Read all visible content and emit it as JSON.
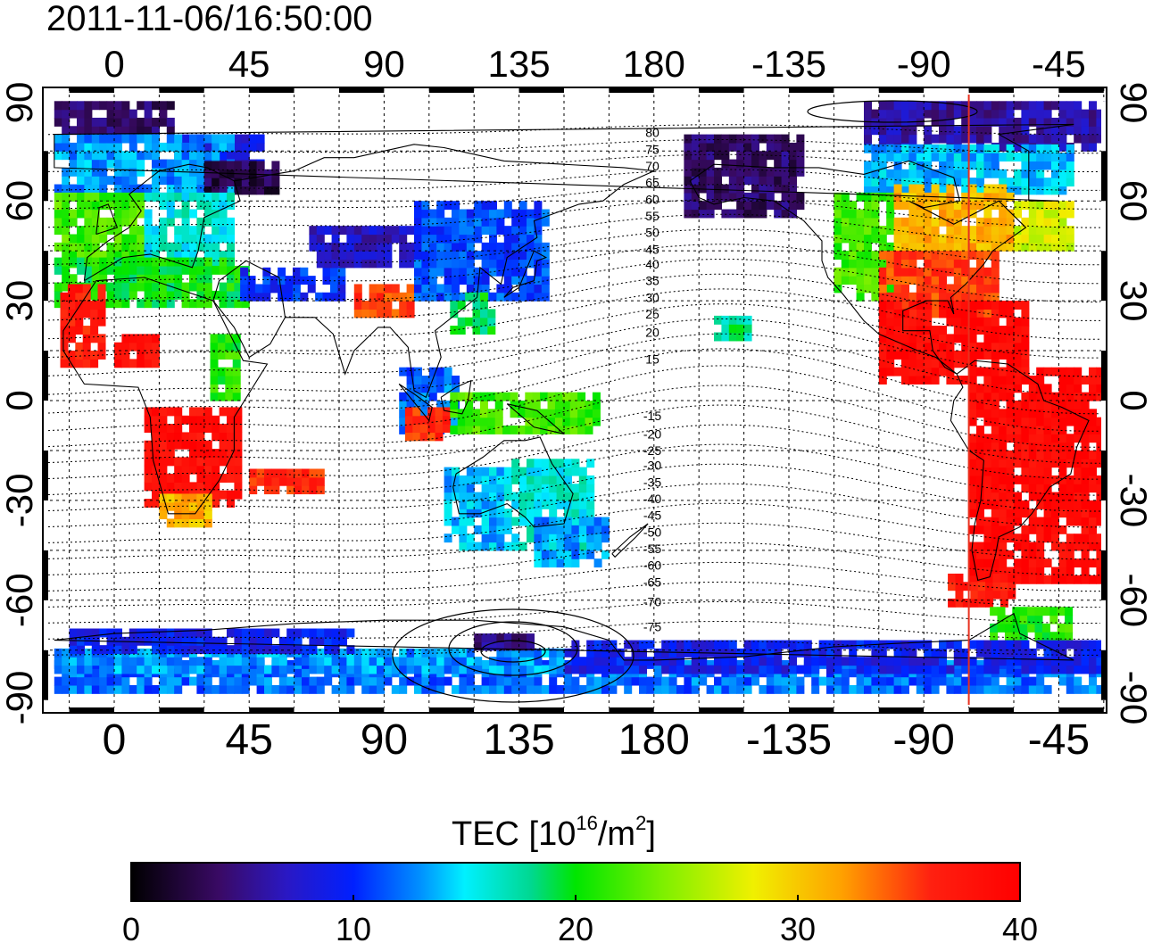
{
  "timestamp": "2011-11-06/16:50:00",
  "map": {
    "lon_ticks": [
      {
        "lon": 0,
        "label": "0"
      },
      {
        "lon": 45,
        "label": "45"
      },
      {
        "lon": 90,
        "label": "90"
      },
      {
        "lon": 135,
        "label": "135"
      },
      {
        "lon": 180,
        "label": "180"
      },
      {
        "lon": 225,
        "label": "-135"
      },
      {
        "lon": 270,
        "label": "-90"
      },
      {
        "lon": 315,
        "label": "-45"
      }
    ],
    "lat_ticks": [
      {
        "lat": 90,
        "label": "90"
      },
      {
        "lat": 60,
        "label": "60"
      },
      {
        "lat": 30,
        "label": "30"
      },
      {
        "lat": 0,
        "label": "0"
      },
      {
        "lat": -30,
        "label": "-30"
      },
      {
        "lat": -60,
        "label": "-60"
      },
      {
        "lat": -90,
        "label": "-90"
      }
    ],
    "terminator_lon": 285,
    "terminator_color": "#e8301e",
    "contour_labels": [
      {
        "label": "80",
        "lat": 80.5
      },
      {
        "label": "75",
        "lat": 75.5
      },
      {
        "label": "70",
        "lat": 70.5
      },
      {
        "label": "65",
        "lat": 65.5
      },
      {
        "label": "60",
        "lat": 60.5
      },
      {
        "label": "55",
        "lat": 55.5
      },
      {
        "label": "50",
        "lat": 50.5
      },
      {
        "label": "45",
        "lat": 45.5
      },
      {
        "label": "40",
        "lat": 41
      },
      {
        "label": "35",
        "lat": 36
      },
      {
        "label": "30",
        "lat": 31
      },
      {
        "label": "25",
        "lat": 26
      },
      {
        "label": "20",
        "lat": 20.5
      },
      {
        "label": "15",
        "lat": 12.5
      },
      {
        "label": "-15",
        "lat": -4.5
      },
      {
        "label": "-20",
        "lat": -10
      },
      {
        "label": "-25",
        "lat": -15
      },
      {
        "label": "-30",
        "lat": -19.5
      },
      {
        "label": "-35",
        "lat": -24.5
      },
      {
        "label": "-40",
        "lat": -29.5
      },
      {
        "label": "-45",
        "lat": -34.5
      },
      {
        "label": "-50",
        "lat": -39.5
      },
      {
        "label": "-55",
        "lat": -44.5
      },
      {
        "label": "-60",
        "lat": -49.5
      },
      {
        "label": "-65",
        "lat": -54.5
      },
      {
        "label": "-70",
        "lat": -60.5
      },
      {
        "label": "-75",
        "lat": -68
      }
    ]
  },
  "colorbar": {
    "title_main": "TEC  [10",
    "title_exp1": "16",
    "title_mid": "/m",
    "title_exp2": "2",
    "title_end": "]",
    "min": 0,
    "max": 40,
    "ticks": [
      {
        "value": 0,
        "label": "0"
      },
      {
        "value": 10,
        "label": "10"
      },
      {
        "value": 20,
        "label": "20"
      },
      {
        "value": 30,
        "label": "30"
      },
      {
        "value": 40,
        "label": "40"
      }
    ],
    "stops": [
      {
        "value": 0,
        "color": "#000000"
      },
      {
        "value": 4,
        "color": "#3a0a66"
      },
      {
        "value": 7,
        "color": "#2a18c4"
      },
      {
        "value": 10,
        "color": "#0020ff"
      },
      {
        "value": 13,
        "color": "#0090ff"
      },
      {
        "value": 15,
        "color": "#00f0ff"
      },
      {
        "value": 18,
        "color": "#00d890"
      },
      {
        "value": 20,
        "color": "#00e600"
      },
      {
        "value": 24,
        "color": "#80f000"
      },
      {
        "value": 28,
        "color": "#f0f000"
      },
      {
        "value": 32,
        "color": "#ffa000"
      },
      {
        "value": 36,
        "color": "#ff2010"
      },
      {
        "value": 40,
        "color": "#ff0000"
      }
    ]
  },
  "tec_regions": [
    {
      "lon0": -20,
      "lon1": 20,
      "lat0": 80,
      "lat1": 88,
      "tec": 4
    },
    {
      "lon0": 20,
      "lon1": 50,
      "lat0": 70,
      "lat1": 80,
      "tec": 8
    },
    {
      "lon0": -20,
      "lon1": 40,
      "lat0": 60,
      "lat1": 78,
      "tec": 13
    },
    {
      "lon0": 30,
      "lon1": 55,
      "lat0": 62,
      "lat1": 72,
      "tec": 3
    },
    {
      "lon0": -20,
      "lon1": 10,
      "lat0": 40,
      "lat1": 62,
      "tec": 22
    },
    {
      "lon0": 10,
      "lon1": 40,
      "lat0": 40,
      "lat1": 62,
      "tec": 16
    },
    {
      "lon0": -20,
      "lon1": 45,
      "lat0": 28,
      "lat1": 42,
      "tec": 20
    },
    {
      "lon0": -18,
      "lon1": -5,
      "lat0": 10,
      "lat1": 34,
      "tec": 37
    },
    {
      "lon0": 0,
      "lon1": 15,
      "lat0": 10,
      "lat1": 18,
      "tec": 38
    },
    {
      "lon0": 32,
      "lon1": 42,
      "lat0": 0,
      "lat1": 18,
      "tec": 21
    },
    {
      "lon0": 10,
      "lon1": 42,
      "lat0": -32,
      "lat1": -2,
      "tec": 38
    },
    {
      "lon0": 15,
      "lon1": 32,
      "lat0": -38,
      "lat1": -30,
      "tec": 31
    },
    {
      "lon0": 45,
      "lon1": 70,
      "lat0": -28,
      "lat1": -22,
      "tec": 36
    },
    {
      "lon0": 42,
      "lon1": 75,
      "lat0": 30,
      "lat1": 40,
      "tec": 10
    },
    {
      "lon0": 65,
      "lon1": 100,
      "lat0": 40,
      "lat1": 52,
      "tec": 7
    },
    {
      "lon0": 80,
      "lon1": 100,
      "lat0": 25,
      "lat1": 35,
      "tec": 35
    },
    {
      "lon0": 100,
      "lon1": 145,
      "lat0": 30,
      "lat1": 58,
      "tec": 11
    },
    {
      "lon0": 112,
      "lon1": 125,
      "lat0": 20,
      "lat1": 32,
      "tec": 19
    },
    {
      "lon0": 95,
      "lon1": 115,
      "lat0": -10,
      "lat1": 10,
      "tec": 12
    },
    {
      "lon0": 97,
      "lon1": 112,
      "lat0": -12,
      "lat1": -2,
      "tec": 36
    },
    {
      "lon0": 112,
      "lon1": 160,
      "lat0": -10,
      "lat1": 2,
      "tec": 22
    },
    {
      "lon0": 110,
      "lon1": 130,
      "lat0": -45,
      "lat1": -20,
      "tec": 14
    },
    {
      "lon0": 130,
      "lon1": 160,
      "lat0": -45,
      "lat1": -18,
      "tec": 16
    },
    {
      "lon0": 140,
      "lon1": 165,
      "lat0": -50,
      "lat1": -35,
      "tec": 13
    },
    {
      "lon0": 190,
      "lon1": 230,
      "lat0": 55,
      "lat1": 78,
      "tec": 4
    },
    {
      "lon0": 200,
      "lon1": 212,
      "lat0": 18,
      "lat1": 25,
      "tec": 18
    },
    {
      "lon0": 250,
      "lon1": 340,
      "lat0": 75,
      "lat1": 88,
      "tec": 6
    },
    {
      "lon0": 250,
      "lon1": 320,
      "lat0": 62,
      "lat1": 76,
      "tec": 14
    },
    {
      "lon0": 240,
      "lon1": 260,
      "lat0": 30,
      "lat1": 62,
      "tec": 22
    },
    {
      "lon0": 260,
      "lon1": 300,
      "lat0": 45,
      "lat1": 65,
      "tec": 31
    },
    {
      "lon0": 300,
      "lon1": 320,
      "lat0": 45,
      "lat1": 60,
      "tec": 27
    },
    {
      "lon0": 255,
      "lon1": 295,
      "lat0": 25,
      "lat1": 45,
      "tec": 35
    },
    {
      "lon0": 255,
      "lon1": 305,
      "lat0": 5,
      "lat1": 28,
      "tec": 39
    },
    {
      "lon0": 285,
      "lon1": 330,
      "lat0": -55,
      "lat1": 8,
      "tec": 39
    },
    {
      "lon0": 278,
      "lon1": 300,
      "lat0": -62,
      "lat1": -52,
      "tec": 37
    },
    {
      "lon0": 292,
      "lon1": 318,
      "lat0": -72,
      "lat1": -62,
      "tec": 21
    },
    {
      "lon0": -20,
      "lon1": 340,
      "lat0": -88,
      "lat1": -80,
      "tec": 12
    },
    {
      "lon0": 150,
      "lon1": 340,
      "lat0": -82,
      "lat1": -72,
      "tec": 9
    },
    {
      "lon0": -20,
      "lon1": 150,
      "lat0": -82,
      "lat1": -76,
      "tec": 13
    },
    {
      "lon0": -15,
      "lon1": 80,
      "lat0": -76,
      "lat1": -70,
      "tec": 9
    },
    {
      "lon0": 120,
      "lon1": 140,
      "lat0": -75,
      "lat1": -70,
      "tec": 5
    }
  ]
}
